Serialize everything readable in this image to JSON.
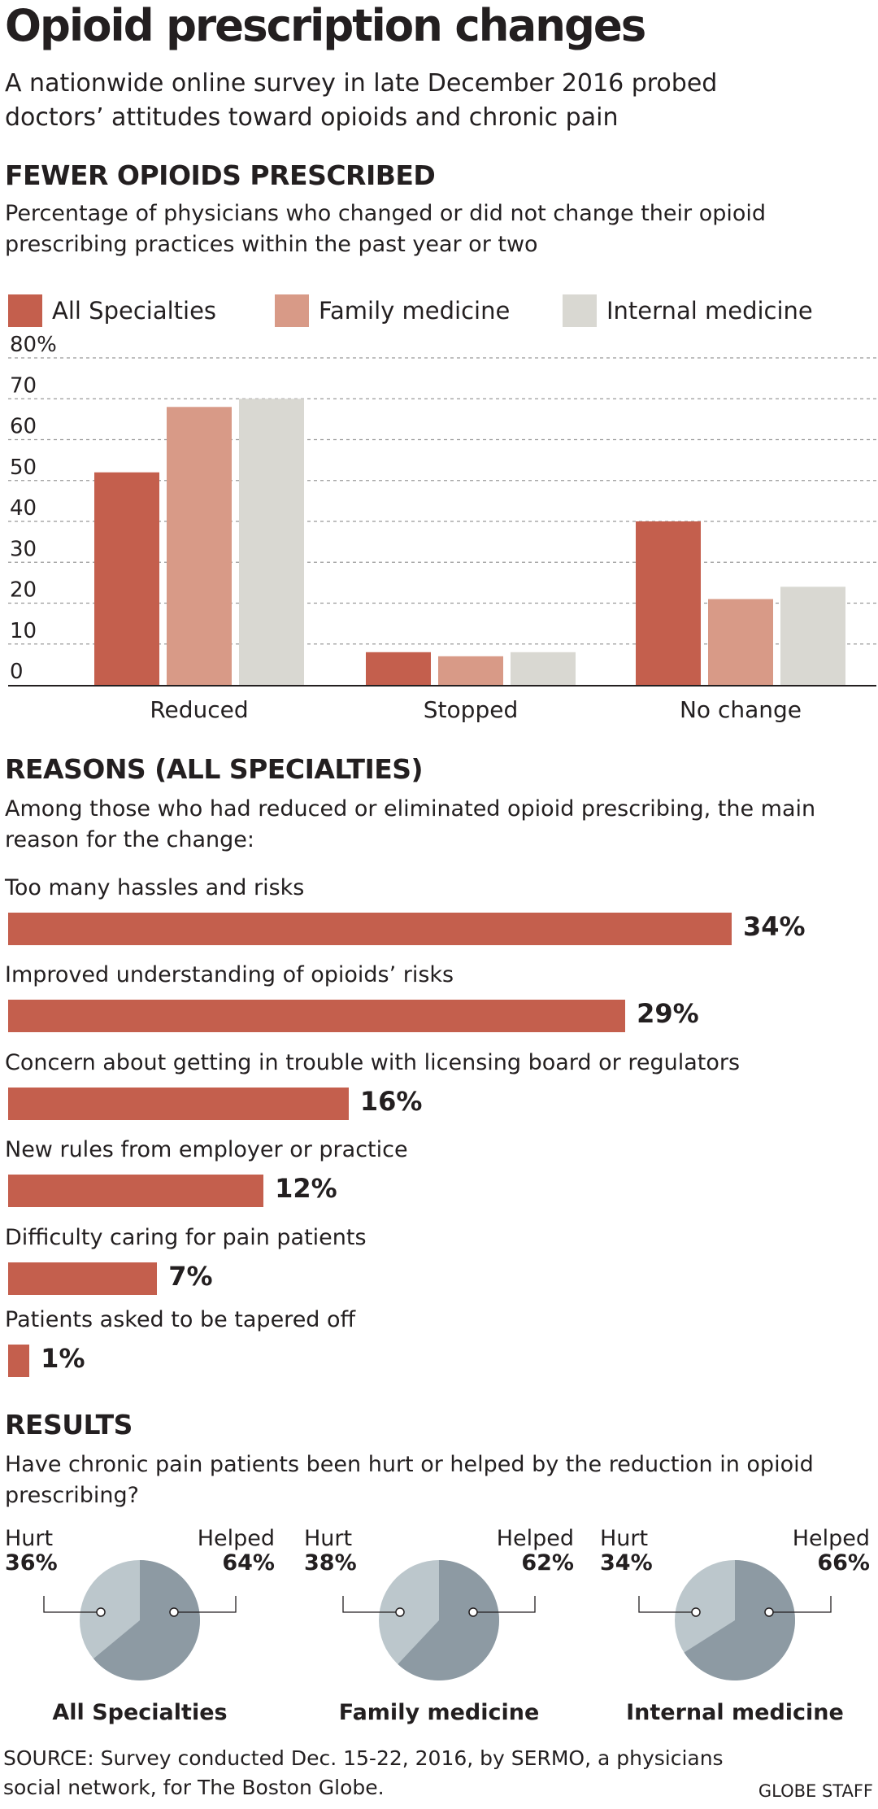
{
  "header": {
    "title": "Opioid prescription changes",
    "subtitle": "A nationwide online survey in late December 2016 probed doctors’ attitudes toward opioids and chronic pain"
  },
  "colors": {
    "all": "#c45f4d",
    "family": "#d89a87",
    "internal": "#d9d8d2",
    "pie_hurt": "#bcc7cc",
    "pie_helped": "#8d9aa3",
    "grid": "#999999"
  },
  "section1": {
    "heading": "FEWER OPIOIDS PRESCRIBED",
    "description": "Percentage of physicians who changed or did not change their opioid prescribing practices within the past year or two"
  },
  "chart_data": {
    "type": "bar",
    "categories": [
      "Reduced",
      "Stopped",
      "No change"
    ],
    "series": [
      {
        "name": "All Specialties",
        "values": [
          52,
          8,
          40
        ]
      },
      {
        "name": "Family medicine",
        "values": [
          68,
          7,
          21
        ]
      },
      {
        "name": "Internal medicine",
        "values": [
          70,
          8,
          24
        ]
      }
    ],
    "ylim": [
      0,
      80
    ],
    "yticks": [
      "0",
      "10",
      "20",
      "30",
      "40",
      "50",
      "60",
      "70",
      "80%"
    ],
    "grid": "dashed horizontal",
    "legend": "top"
  },
  "section2": {
    "heading": "REASONS (ALL SPECIALTIES)",
    "description": "Among those who had reduced or eliminated opioid prescribing, the main reason for the change:",
    "reasons": [
      {
        "label": "Too many hassles and risks",
        "value": 34,
        "value_label": "34%"
      },
      {
        "label": "Improved understanding of opioids’ risks",
        "value": 29,
        "value_label": "29%"
      },
      {
        "label": "Concern about getting in trouble with licensing board or regulators",
        "value": 16,
        "value_label": "16%"
      },
      {
        "label": "New rules from employer or practice",
        "value": 12,
        "value_label": "12%"
      },
      {
        "label": "Difficulty caring for pain patients",
        "value": 7,
        "value_label": "7%"
      },
      {
        "label": "Patients asked to be tapered off",
        "value": 1,
        "value_label": "1%"
      }
    ]
  },
  "section3": {
    "heading": "RESULTS",
    "description": "Have chronic pain patients been hurt or helped by the reduction in opioid prescribing?",
    "pies": [
      {
        "name": "All Specialties",
        "hurt_label": "Hurt",
        "hurt_pct": "36%",
        "hurt": 36,
        "helped_label": "Helped",
        "helped_pct": "64%",
        "helped": 64
      },
      {
        "name": "Family medicine",
        "hurt_label": "Hurt",
        "hurt_pct": "38%",
        "hurt": 38,
        "helped_label": "Helped",
        "helped_pct": "62%",
        "helped": 62
      },
      {
        "name": "Internal medicine",
        "hurt_label": "Hurt",
        "hurt_pct": "34%",
        "hurt": 34,
        "helped_label": "Helped",
        "helped_pct": "66%",
        "helped": 66
      }
    ]
  },
  "footer": {
    "source": "SOURCE: Survey conducted Dec. 15-22, 2016, by SERMO, a physicians social network, for The Boston Globe.",
    "credit": "GLOBE STAFF"
  }
}
